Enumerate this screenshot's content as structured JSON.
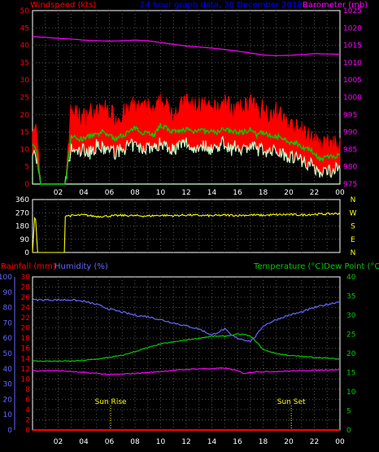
{
  "header": {
    "windspeed_label": "Windspeed (kts)",
    "title": "24 hour graph data, 30 December 2018",
    "barometer_label": "Barometer (mb)"
  },
  "colors": {
    "windspeed": "#ff0000",
    "title": "#0000ff",
    "barometer": "#ff00ff",
    "avg_wind": "#00cc00",
    "gust": "#ff0000",
    "lull": "#ccffcc",
    "direction": "#ffff00",
    "rainfall": "#ff0000",
    "humidity": "#6666ff",
    "temperature": "#00cc00",
    "dewpoint": "#ff00ff",
    "grid": "#ffffff",
    "axis_time": "#ffffff",
    "suntext": "#ffff00"
  },
  "time_ticks": [
    "02",
    "04",
    "06",
    "08",
    "10",
    "12",
    "14",
    "16",
    "18",
    "20",
    "22",
    "00"
  ],
  "chart_data": [
    {
      "type": "line",
      "id": "wind_barometer",
      "x_hours_range": [
        0,
        24
      ],
      "left_axis": {
        "label": "Windspeed (kts)",
        "ylim": [
          0,
          50
        ],
        "ticks": [
          0,
          5,
          10,
          15,
          20,
          25,
          30,
          35,
          40,
          45,
          50
        ]
      },
      "right_axis": {
        "label": "Barometer (mb)",
        "ylim": [
          975,
          1025
        ],
        "ticks": [
          975,
          980,
          985,
          990,
          995,
          1000,
          1005,
          1010,
          1015,
          1020,
          1025
        ]
      },
      "series": [
        {
          "name": "Barometer (mb)",
          "axis": "right",
          "color": "#ff00ff",
          "x": [
            0,
            1,
            2,
            3,
            4,
            5,
            6,
            7,
            8,
            9,
            10,
            11,
            12,
            13,
            14,
            15,
            16,
            17,
            18,
            19,
            20,
            21,
            22,
            23,
            24
          ],
          "values": [
            1017.5,
            1017.3,
            1017,
            1016.8,
            1016.5,
            1016.3,
            1016.2,
            1016.3,
            1016.5,
            1016.3,
            1015.8,
            1015.3,
            1014.8,
            1014.5,
            1014.2,
            1013.8,
            1013.3,
            1012.8,
            1012.2,
            1012,
            1012.1,
            1012.3,
            1012.6,
            1012.5,
            1012.4
          ]
        },
        {
          "name": "Gust (kts)",
          "axis": "left",
          "color": "#ff0000",
          "x": [
            0,
            0.3,
            0.6,
            0.9,
            1.2,
            2.5,
            2.55,
            3,
            3.5,
            4,
            4.5,
            5,
            5.5,
            6,
            6.5,
            7,
            7.5,
            8,
            8.5,
            9,
            9.5,
            10,
            10.5,
            11,
            11.5,
            12,
            12.5,
            13,
            13.5,
            14,
            14.5,
            15,
            15.5,
            16,
            16.5,
            17,
            17.5,
            18,
            18.5,
            19,
            19.5,
            20,
            20.5,
            21,
            21.5,
            22,
            22.5,
            23,
            23.5,
            24
          ],
          "values": [
            18,
            15,
            0,
            0,
            0,
            0,
            0,
            22,
            20,
            19,
            21,
            20,
            22,
            21,
            19,
            20,
            21,
            23,
            21,
            22,
            20,
            24,
            22,
            21,
            22,
            24,
            22,
            23,
            22,
            21,
            22,
            24,
            22,
            21,
            22,
            24,
            21,
            22,
            20,
            21,
            19,
            17,
            16,
            15,
            14,
            13,
            10,
            12,
            11,
            12
          ]
        },
        {
          "name": "Average (kts)",
          "axis": "left",
          "color": "#00cc00",
          "x": [
            0,
            0.3,
            0.6,
            0.9,
            1.2,
            2.5,
            2.55,
            3,
            3.5,
            4,
            4.5,
            5,
            5.5,
            6,
            6.5,
            7,
            7.5,
            8,
            8.5,
            9,
            9.5,
            10,
            10.5,
            11,
            11.5,
            12,
            12.5,
            13,
            13.5,
            14,
            14.5,
            15,
            15.5,
            16,
            16.5,
            17,
            17.5,
            18,
            18.5,
            19,
            19.5,
            20,
            20.5,
            21,
            21.5,
            22,
            22.5,
            23,
            23.5,
            24
          ],
          "values": [
            11,
            10,
            0,
            0,
            0,
            0,
            0,
            14,
            13,
            13,
            14,
            14,
            15,
            14,
            13,
            14,
            15,
            16,
            15,
            15,
            14,
            17,
            16,
            15,
            15,
            16,
            15,
            16,
            15,
            15,
            15,
            16,
            15,
            15,
            15,
            16,
            14,
            15,
            14,
            14,
            13,
            12,
            12,
            11,
            10,
            9,
            7,
            8,
            8,
            8
          ]
        },
        {
          "name": "Lull (kts)",
          "axis": "left",
          "color": "#ccffcc",
          "x": [
            0,
            0.3,
            0.6,
            0.9,
            1.2,
            2.5,
            2.55,
            3,
            3.5,
            4,
            4.5,
            5,
            5.5,
            6,
            6.5,
            7,
            7.5,
            8,
            8.5,
            9,
            9.5,
            10,
            10.5,
            11,
            11.5,
            12,
            12.5,
            13,
            13.5,
            14,
            14.5,
            15,
            15.5,
            16,
            16.5,
            17,
            17.5,
            18,
            18.5,
            19,
            19.5,
            20,
            20.5,
            21,
            21.5,
            22,
            22.5,
            23,
            23.5,
            24
          ],
          "values": [
            9,
            8,
            0,
            0,
            0,
            0,
            0,
            10,
            9,
            10,
            9,
            11,
            10,
            10,
            9,
            10,
            11,
            11,
            10,
            11,
            10,
            12,
            11,
            10,
            11,
            12,
            10,
            11,
            11,
            10,
            11,
            12,
            10,
            11,
            10,
            11,
            10,
            10,
            9,
            10,
            9,
            8,
            8,
            7,
            6,
            5,
            3,
            4,
            4,
            5
          ]
        }
      ]
    },
    {
      "type": "scatter",
      "id": "wind_direction",
      "x_hours_range": [
        0,
        24
      ],
      "left_axis": {
        "ylim": [
          0,
          360
        ],
        "ticks": [
          0,
          90,
          180,
          270,
          360
        ]
      },
      "right_axis": {
        "labels": [
          "N",
          "W",
          "S",
          "E",
          "N"
        ]
      },
      "series": [
        {
          "name": "Direction (deg)",
          "color": "#ffff00",
          "x": [
            0,
            0.2,
            0.4,
            0.5,
            2.5,
            2.55,
            3,
            4,
            5,
            6,
            7,
            8,
            9,
            10,
            11,
            12,
            13,
            14,
            15,
            16,
            17,
            18,
            19,
            20,
            21,
            22,
            23,
            24
          ],
          "values": [
            0,
            290,
            0,
            0,
            0,
            250,
            250,
            255,
            245,
            248,
            252,
            250,
            248,
            253,
            250,
            255,
            252,
            250,
            254,
            252,
            255,
            253,
            256,
            258,
            255,
            260,
            262,
            265
          ]
        }
      ]
    },
    {
      "type": "line",
      "id": "temp_humidity_rain",
      "x_hours_range": [
        0,
        24
      ],
      "left_axes": [
        {
          "label": "Rainfall (mm)",
          "ylim": [
            0,
            30
          ],
          "ticks": [
            0,
            2,
            4,
            6,
            8,
            10,
            12,
            14,
            16,
            18,
            20,
            22,
            24,
            26,
            28,
            30
          ]
        },
        {
          "label": "Humidity (%)",
          "ylim": [
            0,
            100
          ],
          "ticks": [
            0,
            10,
            20,
            30,
            40,
            50,
            60,
            70,
            80,
            90,
            100
          ]
        }
      ],
      "right_axis": {
        "label": "Temperature (°C)Dew Point (°C)",
        "ylim": [
          0,
          40
        ],
        "ticks": [
          0,
          5,
          10,
          15,
          20,
          25,
          30,
          35,
          40
        ]
      },
      "series": [
        {
          "name": "Humidity (%)",
          "axis": "humidity",
          "color": "#6666ff",
          "x": [
            0,
            2,
            3,
            4,
            5,
            6,
            7,
            8,
            9,
            10,
            11,
            12,
            13,
            14,
            14.5,
            15,
            15.5,
            16,
            16.5,
            17,
            17.5,
            18,
            19,
            20,
            21,
            22,
            23,
            24
          ],
          "values": [
            85,
            85,
            85,
            84,
            82,
            79,
            77,
            75,
            74,
            72,
            70,
            68,
            66,
            62,
            64,
            66,
            62,
            60,
            59,
            58,
            62,
            68,
            72,
            75,
            77,
            80,
            82,
            84
          ]
        },
        {
          "name": "Temperature (°C)",
          "axis": "right",
          "color": "#00cc00",
          "x": [
            0,
            2,
            3,
            4,
            5,
            6,
            7,
            8,
            9,
            10,
            11,
            12,
            13,
            14,
            15,
            16,
            16.5,
            17,
            17.5,
            18,
            19,
            20,
            21,
            22,
            23,
            24
          ],
          "values": [
            18,
            18,
            18,
            18.2,
            18.5,
            19,
            19.5,
            20.5,
            21.5,
            22.5,
            23,
            23.5,
            24,
            24.5,
            24.5,
            25,
            25,
            24.5,
            23,
            21,
            20,
            19.5,
            19.2,
            19,
            18.8,
            18.5
          ]
        },
        {
          "name": "Dew Point (°C)",
          "axis": "right",
          "color": "#ff00ff",
          "x": [
            0,
            2,
            3,
            4,
            5,
            6,
            7,
            8,
            9,
            10,
            11,
            12,
            13,
            14,
            15,
            16,
            16.5,
            17,
            17.5,
            18,
            19,
            20,
            21,
            22,
            23,
            24
          ],
          "values": [
            15.5,
            15.5,
            15.3,
            15,
            14.8,
            14.5,
            14.6,
            14.8,
            15,
            15.3,
            15.6,
            15.8,
            16,
            16,
            16.2,
            15.5,
            14.8,
            15,
            15.3,
            15.2,
            15.3,
            15.4,
            15.5,
            15.6,
            15.7,
            15.8
          ]
        },
        {
          "name": "Rainfall (mm)",
          "axis": "rainfall",
          "color": "#ff0000",
          "x": [
            0,
            24
          ],
          "values": [
            0,
            0
          ]
        }
      ],
      "annotations": [
        {
          "text": "Sun Rise",
          "hour": 6.1
        },
        {
          "text": "Sun Set",
          "hour": 20.2
        }
      ]
    }
  ]
}
